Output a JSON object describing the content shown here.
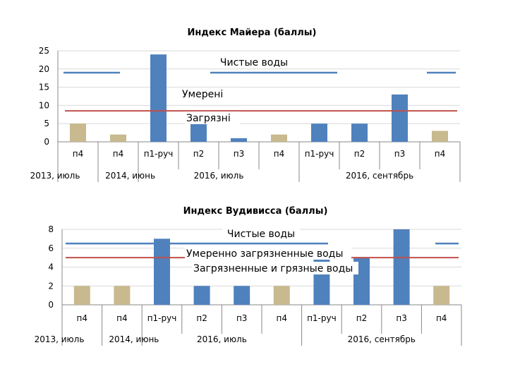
{
  "chart_data": [
    {
      "type": "bar",
      "title": "Индекс Майера (баллы)",
      "categories": [
        "п4",
        "п4",
        "п1-руч",
        "п2",
        "п3",
        "п4",
        "п1-руч",
        "п2",
        "п3",
        "п4"
      ],
      "groups": [
        {
          "label": "2013, июль",
          "start": 0,
          "end": 0
        },
        {
          "label": "2014, июнь",
          "start": 1,
          "end": 1
        },
        {
          "label": "2016,  июль",
          "start": 2,
          "end": 5
        },
        {
          "label": "2016, сентябрь",
          "start": 6,
          "end": 9
        }
      ],
      "values": [
        5,
        2,
        24,
        6,
        1,
        2,
        5,
        5,
        13,
        3
      ],
      "bar_colors": [
        "#c8b98f",
        "#c8b98f",
        "#4f81bd",
        "#4f81bd",
        "#4f81bd",
        "#c8b98f",
        "#4f81bd",
        "#4f81bd",
        "#4f81bd",
        "#c8b98f"
      ],
      "ylim": [
        0,
        25
      ],
      "yticks": [
        0,
        5,
        10,
        15,
        20,
        25
      ],
      "grid": true,
      "reference_lines": [
        {
          "value": 19,
          "color": "#4f81bd",
          "label": "Чистые воды"
        },
        {
          "value": 8.5,
          "color": "#c0504d",
          "label": "Загрязн"
        }
      ],
      "annotations": [
        "Чистые воды",
        "Умерені",
        "Загрязні"
      ]
    },
    {
      "type": "bar",
      "title": "Индекс Вудивисса (баллы)",
      "categories": [
        "п4",
        "п4",
        "п1-руч",
        "п2",
        "п3",
        "п4",
        "п1-руч",
        "п2",
        "п3",
        "п4"
      ],
      "groups": [
        {
          "label": "2013, июль",
          "start": 0,
          "end": 0
        },
        {
          "label": "2014, июнь",
          "start": 1,
          "end": 1
        },
        {
          "label": "2016,  июль",
          "start": 2,
          "end": 5
        },
        {
          "label": "2016, сентябрь",
          "start": 6,
          "end": 9
        }
      ],
      "values": [
        2,
        2,
        7,
        2,
        2,
        2,
        5,
        5,
        8,
        2
      ],
      "bar_colors": [
        "#c8b98f",
        "#c8b98f",
        "#4f81bd",
        "#4f81bd",
        "#4f81bd",
        "#c8b98f",
        "#4f81bd",
        "#4f81bd",
        "#4f81bd",
        "#c8b98f"
      ],
      "ylim": [
        0,
        8
      ],
      "yticks": [
        0,
        2,
        4,
        6,
        8
      ],
      "grid": true,
      "reference_lines": [
        {
          "value": 6.5,
          "color": "#4f81bd",
          "label": "Чистые воды"
        },
        {
          "value": 5,
          "color": "#c0504d",
          "label": "Умеренно загрязненные воды"
        }
      ],
      "annotations": [
        "Чистые воды",
        "Умеренно загрязненные воды",
        "Загрязненные  и грязные воды"
      ]
    }
  ]
}
